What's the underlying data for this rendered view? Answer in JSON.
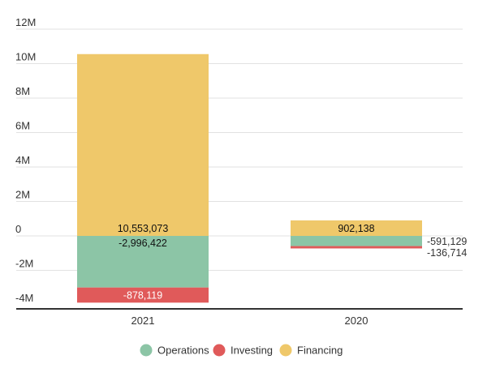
{
  "chart_data": {
    "type": "bar",
    "stacked": true,
    "title": "",
    "xlabel": "",
    "ylabel": "",
    "categories": [
      "2021",
      "2020"
    ],
    "ylim": [
      -4000000,
      12000000
    ],
    "yticks": [
      {
        "value": 12000000,
        "label": "12M"
      },
      {
        "value": 10000000,
        "label": "10M"
      },
      {
        "value": 8000000,
        "label": "8M"
      },
      {
        "value": 6000000,
        "label": "6M"
      },
      {
        "value": 4000000,
        "label": "4M"
      },
      {
        "value": 2000000,
        "label": "2M"
      },
      {
        "value": 0,
        "label": "0"
      },
      {
        "value": -2000000,
        "label": "-2M"
      },
      {
        "value": -4000000,
        "label": "-4M"
      }
    ],
    "grid": true,
    "legend_position": "bottom-center",
    "series": [
      {
        "name": "Operations",
        "color": "#8cc5a6",
        "values": [
          -2996422,
          -591129
        ],
        "labels": [
          "-2,996,422",
          "-591,129"
        ]
      },
      {
        "name": "Investing",
        "color": "#e05a5a",
        "values": [
          -878119,
          -136714
        ],
        "labels": [
          "-878,119",
          "-136,714"
        ]
      },
      {
        "name": "Financing",
        "color": "#efc86a",
        "values": [
          10553073,
          902138
        ],
        "labels": [
          "10,553,073",
          "902,138"
        ]
      }
    ]
  }
}
